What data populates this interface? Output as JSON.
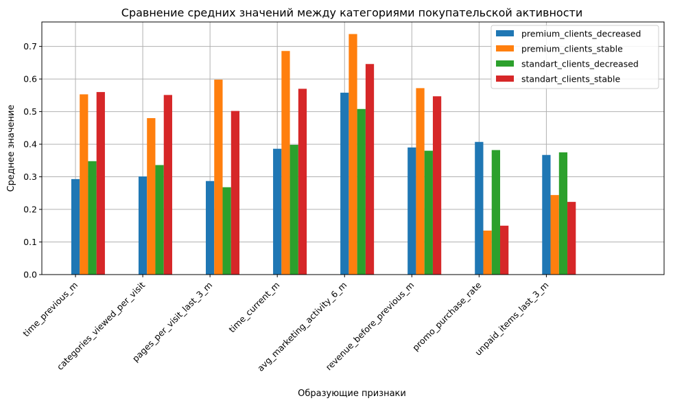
{
  "chart_data": {
    "type": "bar",
    "title": "Сравнение средних значений между категориями покупательской активности",
    "xlabel": "Образующие признаки",
    "ylabel": "Среднее значение",
    "ylim": [
      0,
      0.775
    ],
    "yticks": [
      0.0,
      0.1,
      0.2,
      0.3,
      0.4,
      0.5,
      0.6,
      0.7
    ],
    "ytick_labels": [
      "0.0",
      "0.1",
      "0.2",
      "0.3",
      "0.4",
      "0.5",
      "0.6",
      "0.7"
    ],
    "grid": true,
    "legend_position": "top-right",
    "categories": [
      "time_previous_m",
      "categories_viewed_per_visit",
      "pages_per_visit_last_3_m",
      "time_current_m",
      "avg_marketing_activity_6_m",
      "revenue_before_previous_m",
      "promo_purchase_rate",
      "unpaid_items_last_3_m"
    ],
    "series": [
      {
        "name": "premium_clients_decreased",
        "color": "#1f77b4",
        "values": [
          0.293,
          0.301,
          0.287,
          0.386,
          0.558,
          0.39,
          0.407,
          0.367
        ]
      },
      {
        "name": "premium_clients_stable",
        "color": "#ff7f0e",
        "values": [
          0.553,
          0.48,
          0.598,
          0.686,
          0.738,
          0.572,
          0.135,
          0.244
        ]
      },
      {
        "name": "standart_clients_decreased",
        "color": "#2ca02c",
        "values": [
          0.348,
          0.336,
          0.268,
          0.398,
          0.508,
          0.38,
          0.382,
          0.375
        ]
      },
      {
        "name": "standart_clients_stable",
        "color": "#d62728",
        "values": [
          0.56,
          0.551,
          0.502,
          0.57,
          0.646,
          0.547,
          0.15,
          0.223
        ]
      }
    ]
  }
}
